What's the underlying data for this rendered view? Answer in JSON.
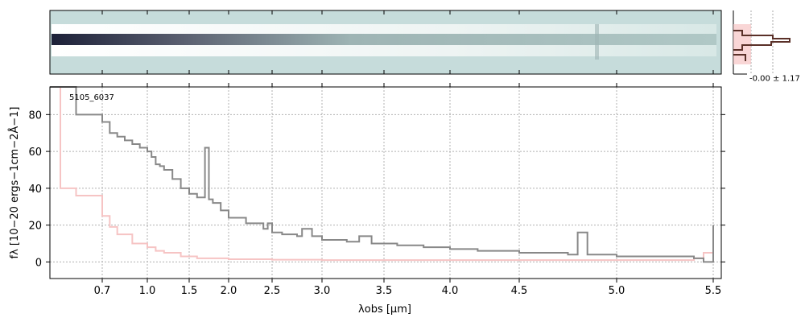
{
  "chart_data": [
    {
      "panel": "2d-spectrum",
      "type": "heatmap",
      "colormap": [
        "#c6dcdb",
        "#1c2038"
      ],
      "description_visible": "2D spectral image, dark trace at left fading to right"
    },
    {
      "panel": "profile",
      "type": "bar",
      "annotation": "-0.00 ± 1.17",
      "colors": {
        "model": "#f6c4c4",
        "data": "#5a3028"
      }
    },
    {
      "panel": "1d-spectrum",
      "type": "line",
      "label": "5105_6037",
      "xlabel": "λobs [μm]",
      "ylabel": "fλ [10−20 ergs−1cm−2Å−1]",
      "ylim": [
        -9,
        95
      ],
      "yticks": [
        0,
        20,
        40,
        60,
        80
      ],
      "xticks": [
        {
          "value": 0.7,
          "label": "0.7"
        },
        {
          "value": 1.0,
          "label": "1.0"
        },
        {
          "value": 1.5,
          "label": "1.5"
        },
        {
          "value": 2.0,
          "label": "2.0"
        },
        {
          "value": 2.5,
          "label": "2.5"
        },
        {
          "value": 3.0,
          "label": "3.0"
        },
        {
          "value": 3.5,
          "label": "3.5"
        },
        {
          "value": 4.0,
          "label": "4.0"
        },
        {
          "value": 4.5,
          "label": "4.5"
        },
        {
          "value": 5.0,
          "label": "5.0"
        },
        {
          "value": 5.5,
          "label": "5.5"
        }
      ],
      "grid": true,
      "series": [
        {
          "color": "#888888",
          "x": [
            0.6,
            0.65,
            0.7,
            0.75,
            0.8,
            0.85,
            0.9,
            0.95,
            1.0,
            1.05,
            1.1,
            1.15,
            1.2,
            1.3,
            1.4,
            1.5,
            1.6,
            1.7,
            1.75,
            1.8,
            1.9,
            2.0,
            2.2,
            2.4,
            2.45,
            2.5,
            2.6,
            2.75,
            2.8,
            2.9,
            3.0,
            3.2,
            3.3,
            3.4,
            3.6,
            3.8,
            4.0,
            4.2,
            4.5,
            4.75,
            4.8,
            4.85,
            5.0,
            5.2,
            5.4,
            5.45,
            5.5
          ],
          "y": [
            95,
            80,
            76,
            70,
            68,
            66,
            64,
            62,
            60,
            57,
            53,
            52,
            50,
            45,
            40,
            37,
            35,
            62,
            34,
            32,
            28,
            24,
            21,
            18,
            21,
            16,
            15,
            14,
            18,
            14,
            12,
            11,
            14,
            10,
            9,
            8,
            7,
            6,
            5,
            4,
            16,
            4,
            3,
            3,
            2,
            0,
            20
          ]
        },
        {
          "color": "#f6c4c4",
          "x": [
            0.6,
            0.62,
            0.65,
            0.7,
            0.75,
            0.8,
            0.9,
            1.0,
            1.1,
            1.2,
            1.4,
            1.6,
            2.0,
            2.5,
            3.0,
            4.0,
            5.0,
            5.4,
            5.45,
            5.5
          ],
          "y": [
            95,
            40,
            36,
            25,
            19,
            15,
            10,
            8,
            6,
            5,
            3,
            2,
            1.5,
            1.2,
            1.0,
            1.0,
            1.0,
            2,
            5,
            15
          ]
        }
      ]
    }
  ]
}
